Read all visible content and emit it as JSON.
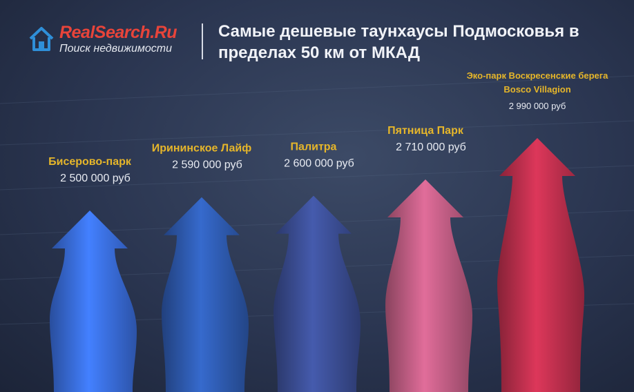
{
  "header": {
    "logo_part1": "RealSearch",
    "logo_part2": ".Ru",
    "logo_tagline": "Поиск недвижимости",
    "title": "Самые дешевые таунхаусы Подмосковья в пределах 50 км от МКАД"
  },
  "chart_data": {
    "type": "bar",
    "title": "Самые дешевые таунхаусы Подмосковья в пределах 50 км от МКАД",
    "xlabel": "",
    "ylabel": "",
    "unit": "руб",
    "categories": [
      [
        "Бисерово-парк"
      ],
      [
        "Ирининское Лайф"
      ],
      [
        "Палитра"
      ],
      [
        "Пятница Парк"
      ],
      [
        "Эко-парк Воскресенские берега",
        "Bosco Villagion"
      ]
    ],
    "values": [
      2500000,
      2590000,
      2600000,
      2710000,
      2990000
    ],
    "value_labels": [
      "2 500 000 руб",
      "2 590 000 руб",
      "2 600 000 руб",
      "2 710 000 руб",
      "2 990 000 руб"
    ],
    "colors": [
      "#3a6fe0",
      "#2f5cb2",
      "#3c4f96",
      "#c45f86",
      "#c0304e"
    ],
    "label_color": "#e6b62a",
    "value_color": "#e8ebf2"
  }
}
